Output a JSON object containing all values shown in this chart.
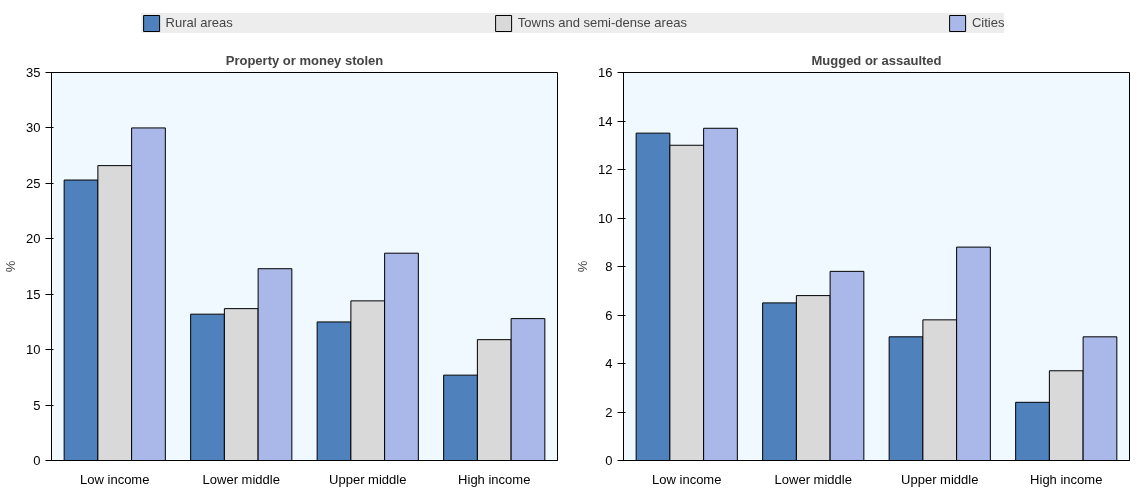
{
  "chart_data": [
    {
      "type": "bar",
      "title": "Property or money stolen",
      "ylabel": "%",
      "categories": [
        "Low income",
        "Lower middle",
        "Upper middle",
        "High income"
      ],
      "ylim": [
        0,
        35
      ],
      "yticks": [
        0,
        5,
        10,
        15,
        20,
        25,
        30,
        35
      ],
      "grid": false,
      "legend": "top",
      "series": [
        {
          "name": "Rural areas",
          "color": "#4f81bd",
          "values": [
            25.3,
            13.2,
            12.5,
            7.7
          ]
        },
        {
          "name": "Towns and semi-dense areas",
          "color": "#d9d9d9",
          "values": [
            26.6,
            13.7,
            14.4,
            10.9
          ]
        },
        {
          "name": "Cities",
          "color": "#a9b8e8",
          "values": [
            30.0,
            17.3,
            18.7,
            12.8
          ]
        }
      ]
    },
    {
      "type": "bar",
      "title": "Mugged or assaulted",
      "ylabel": "%",
      "categories": [
        "Low income",
        "Lower middle",
        "Upper middle",
        "High income"
      ],
      "ylim": [
        0,
        16
      ],
      "yticks": [
        0,
        2,
        4,
        6,
        8,
        10,
        12,
        14,
        16
      ],
      "grid": false,
      "series": [
        {
          "color": "#4f81bd",
          "values": [
            13.5,
            6.5,
            5.1,
            2.4
          ]
        },
        {
          "color": "#d9d9d9",
          "values": [
            13.0,
            6.8,
            5.8,
            3.7
          ]
        },
        {
          "color": "#a9b8e8",
          "values": [
            13.7,
            7.8,
            8.8,
            5.1
          ]
        }
      ]
    }
  ]
}
